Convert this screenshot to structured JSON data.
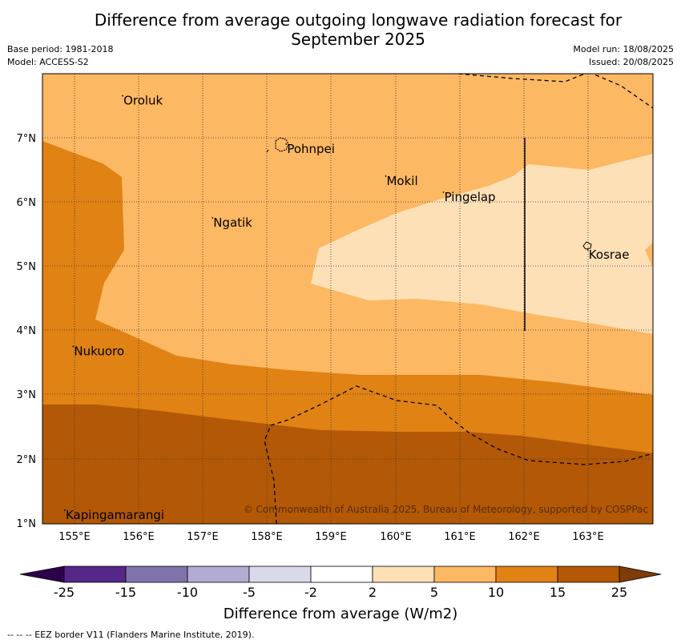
{
  "title_line1": "Difference from average outgoing longwave radiation forecast for",
  "title_line2": "September 2025",
  "meta_left": [
    "Base period: 1981-2018",
    "Model: ACCESS-S2"
  ],
  "meta_right": [
    "Model run: 18/08/2025",
    "Issued: 20/08/2025"
  ],
  "copyright": "© Commonwealth of Australia 2025, Bureau of Meteorology, supported by COSPPac",
  "footnote": "--  --  -- EEZ border V11 (Flanders Marine Institute, 2019).",
  "lon_labels": [
    "155°E",
    "156°E",
    "157°E",
    "158°E",
    "159°E",
    "160°E",
    "161°E",
    "162°E",
    "163°E"
  ],
  "lat_labels": [
    "1°N",
    "2°N",
    "3°N",
    "4°N",
    "5°N",
    "6°N",
    "7°N"
  ],
  "places": [
    {
      "name": "Oroluk",
      "lon": 155.75,
      "lat": 7.65
    },
    {
      "name": "Pohnpei",
      "lon": 158.3,
      "lat": 6.9
    },
    {
      "name": "Mokil",
      "lon": 159.85,
      "lat": 6.4
    },
    {
      "name": "Pingelap",
      "lon": 160.75,
      "lat": 6.15
    },
    {
      "name": "Ngatik",
      "lon": 157.15,
      "lat": 5.75
    },
    {
      "name": "Kosrae",
      "lon": 163.0,
      "lat": 5.25
    },
    {
      "name": "Nukuoro",
      "lon": 154.98,
      "lat": 3.75
    },
    {
      "name": "Kapingamarangi",
      "lon": 154.85,
      "lat": 1.2
    }
  ],
  "colorbar": {
    "label": "Difference from average (W/m2)",
    "ticks": [
      "-25",
      "-15",
      "-10",
      "-5",
      "-2",
      "2",
      "5",
      "10",
      "15",
      "25"
    ],
    "colors": [
      "#542788",
      "#8073ac",
      "#b2abd2",
      "#d8daeb",
      "#ffffff",
      "#fee0b6",
      "#fdb863",
      "#e08214",
      "#b35806"
    ],
    "under_color": "#2d004b",
    "over_color": "#7f3b08"
  },
  "legend_colors": {
    "5_to_10": "#fdb863",
    "10_to_15": "#e08214",
    "15_to_25": "#b35806",
    "2_to_5": "#fee0b6"
  }
}
